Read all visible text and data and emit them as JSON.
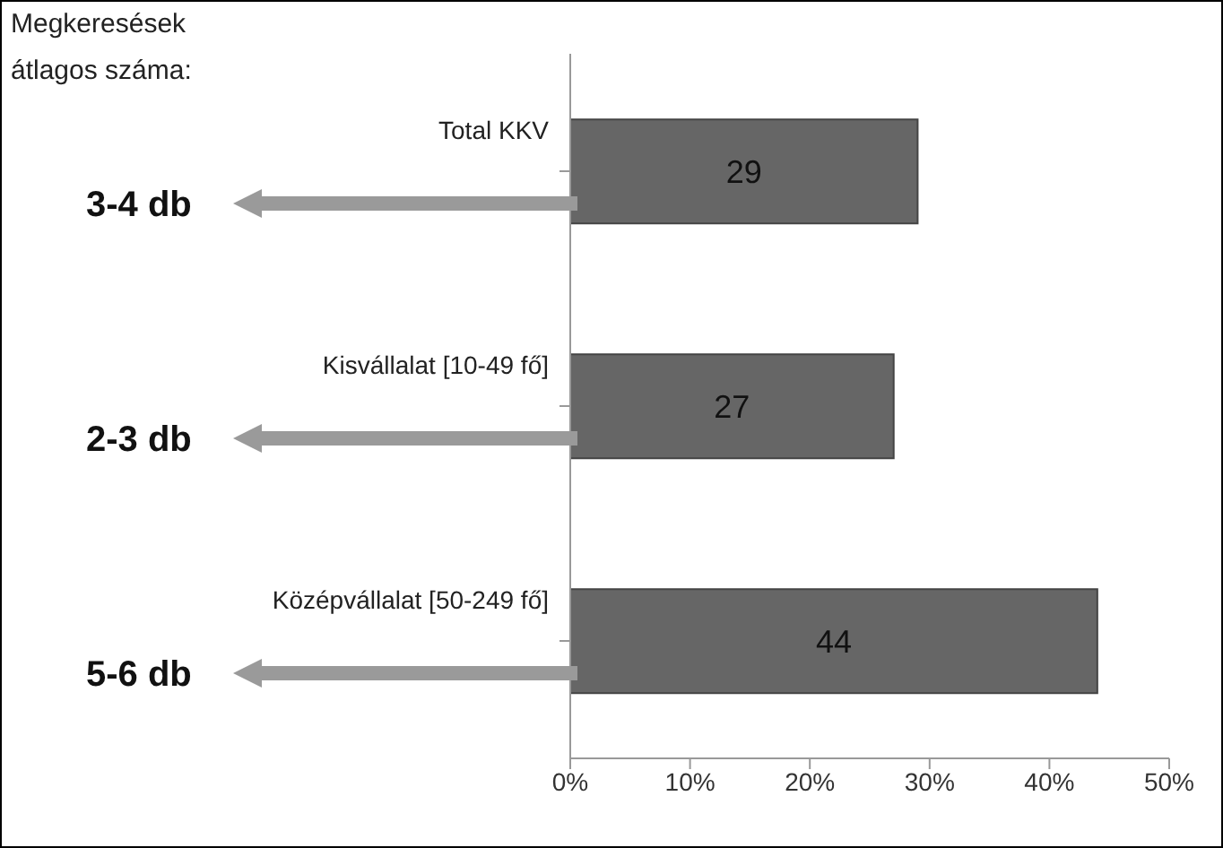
{
  "chart_data": {
    "type": "bar",
    "orientation": "horizontal",
    "categories": [
      "Total KKV",
      "Kisvállalat [10-49 fő]",
      "Középvállalat [50-249 fő]"
    ],
    "values": [
      29,
      27,
      44
    ],
    "color": "#666666",
    "xlim": [
      0,
      50
    ],
    "xticks": [
      {
        "value": 0,
        "label": "0%"
      },
      {
        "value": 10,
        "label": "10%"
      },
      {
        "value": 20,
        "label": "20%"
      },
      {
        "value": 30,
        "label": "30%"
      },
      {
        "value": 40,
        "label": "40%"
      },
      {
        "value": 50,
        "label": "50%"
      }
    ],
    "data_labels": true,
    "grid": false,
    "legend": false,
    "annotations": [
      "Megkeresések átlagos száma:",
      "3-4 db",
      "2-3 db",
      "5-6 db"
    ]
  }
}
